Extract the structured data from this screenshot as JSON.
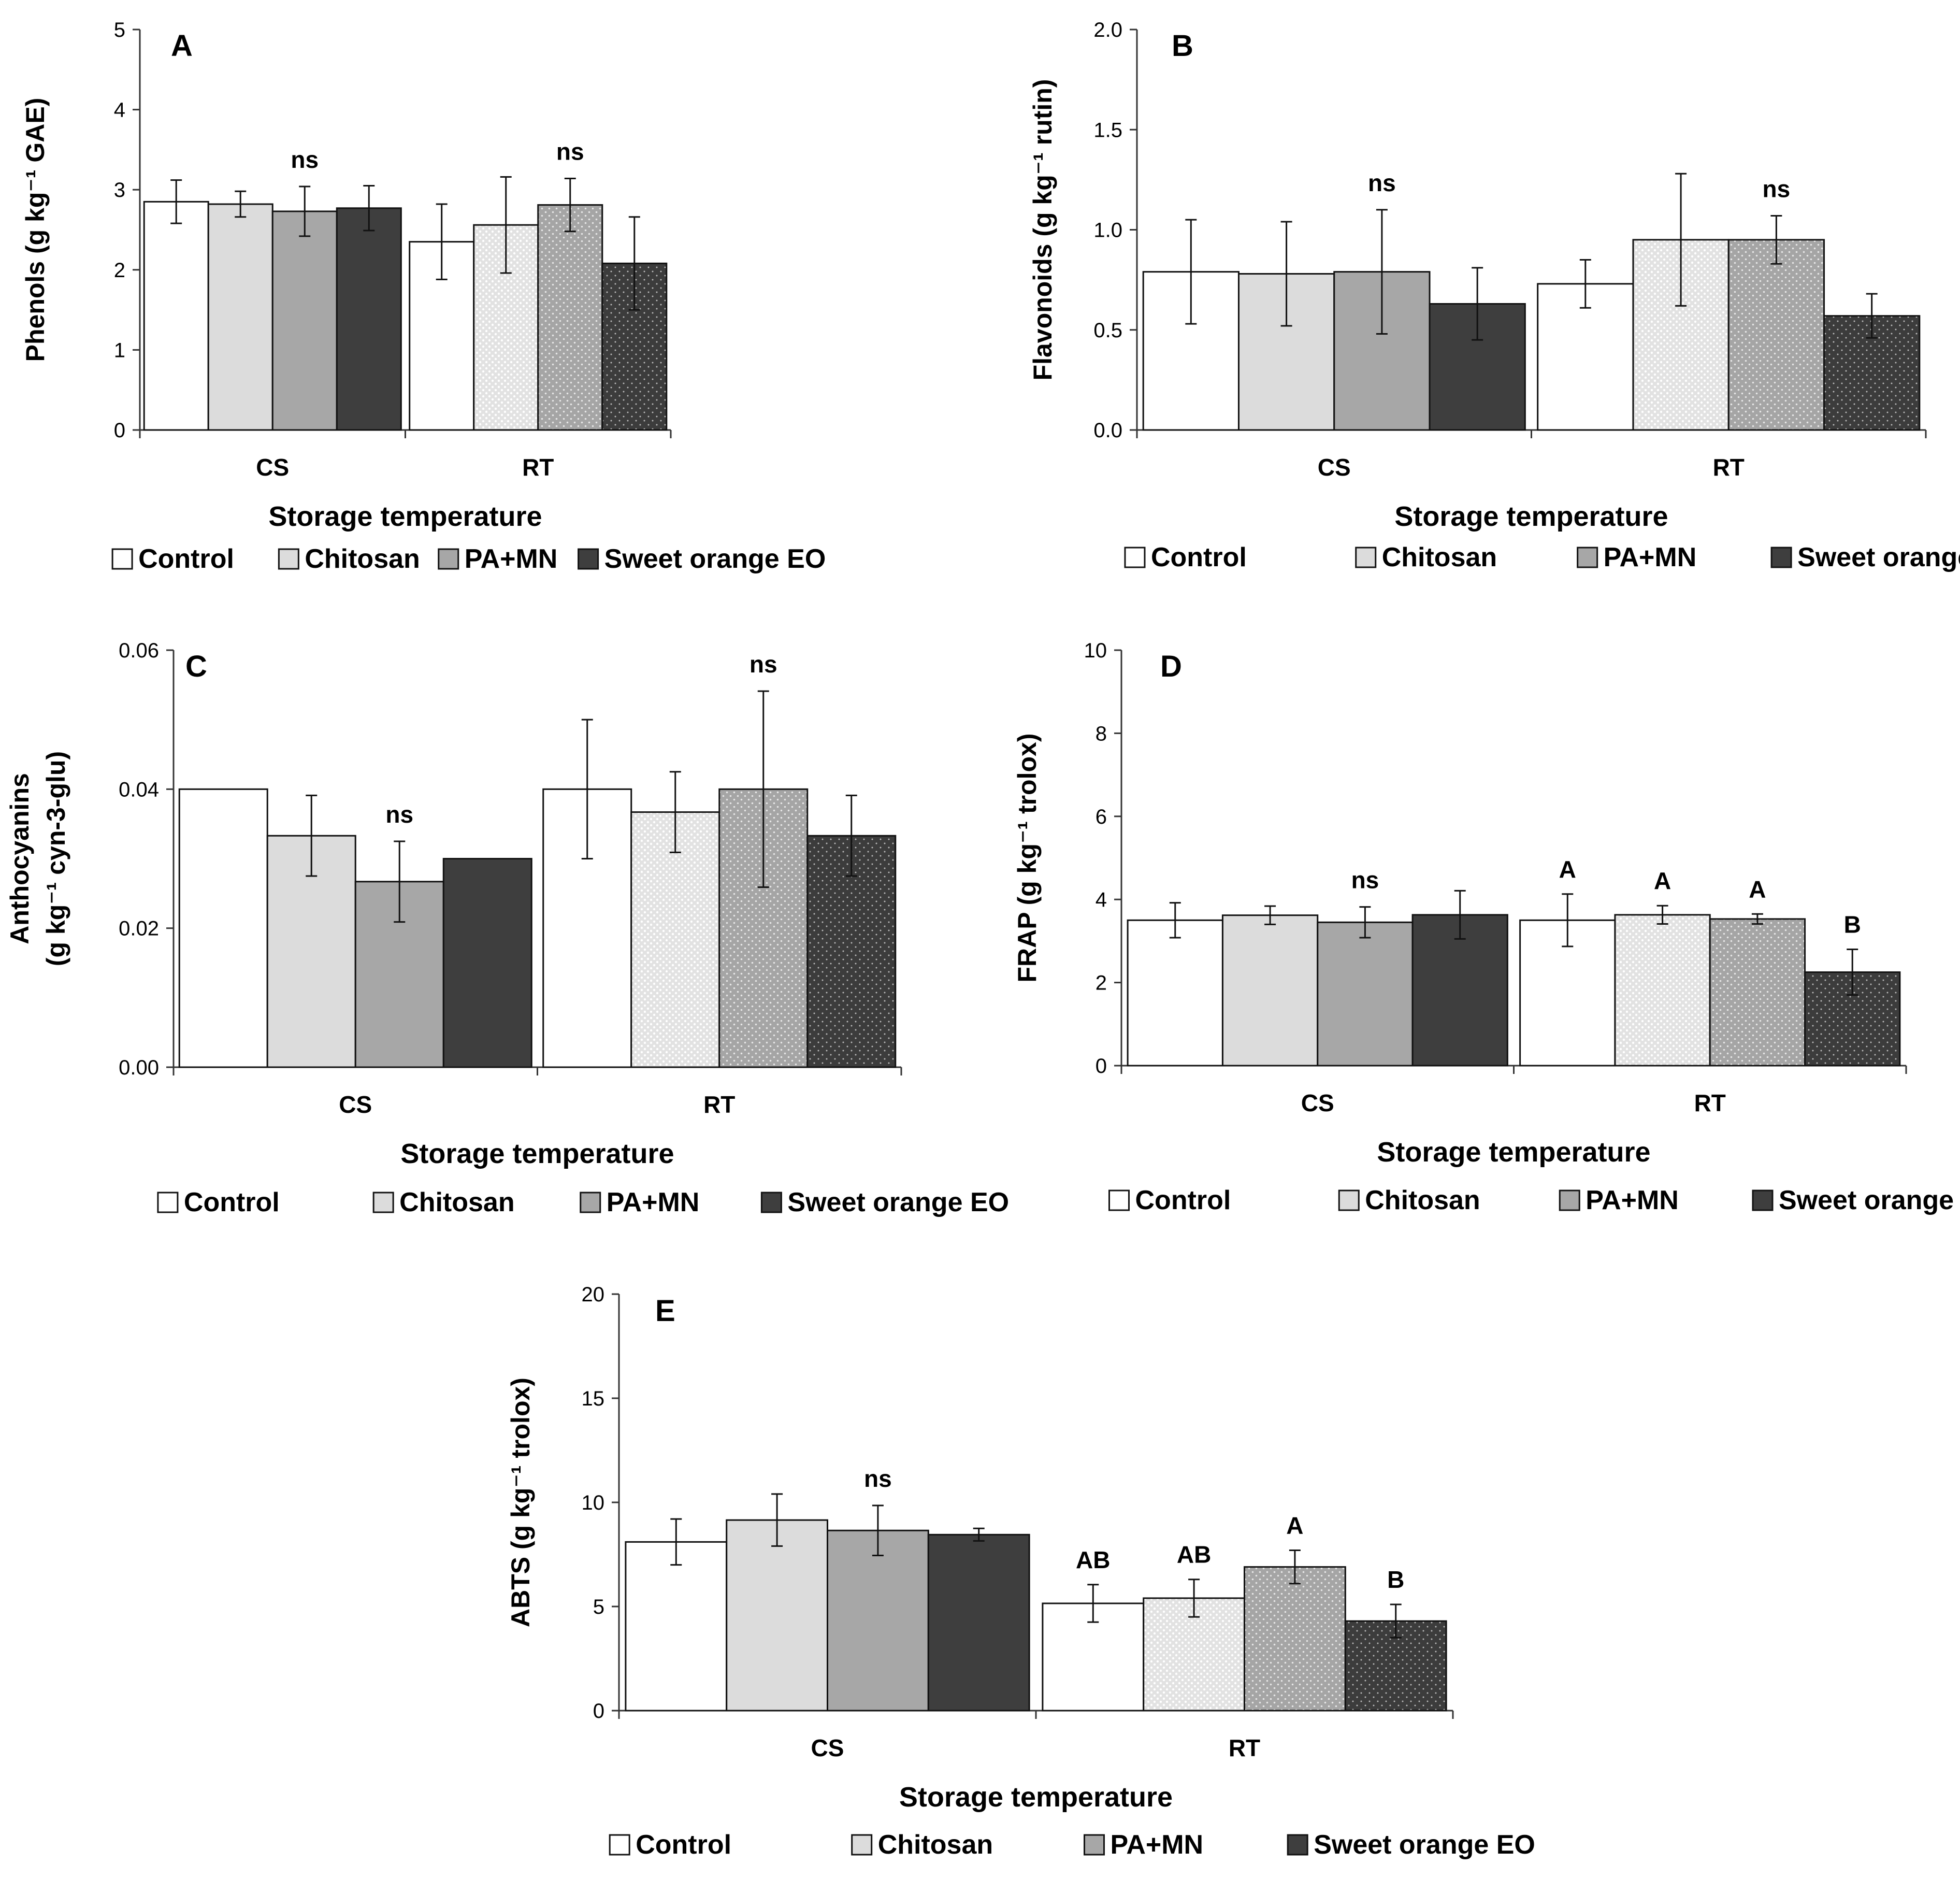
{
  "legend": [
    {
      "label": "Control",
      "fill": "#ffffff",
      "pattern": "none"
    },
    {
      "label": "Chitosan",
      "fill": "#dcdcdc",
      "pattern": "none"
    },
    {
      "label": "PA+MN",
      "fill": "#a7a7a7",
      "pattern": "none"
    },
    {
      "label": "Sweet orange EO",
      "fill": "#3e3e3e",
      "pattern": "none"
    }
  ],
  "rt_patterns": [
    "none",
    "dots-light",
    "dots-mid",
    "dots-dark"
  ],
  "chart_data": [
    {
      "type": "bar",
      "panel": "A",
      "title": "",
      "xlabel": "Storage temperature",
      "ylabel": "Phenols (g kg⁻¹ GAE)",
      "ylim": [
        0,
        5
      ],
      "yticks": [
        "0",
        "1",
        "2",
        "3",
        "4",
        "5"
      ],
      "categories": [
        "CS",
        "RT"
      ],
      "series": [
        {
          "name": "Control",
          "values": [
            2.85,
            2.35
          ],
          "errors": [
            0.27,
            0.47
          ]
        },
        {
          "name": "Chitosan",
          "values": [
            2.82,
            2.56
          ],
          "errors": [
            0.16,
            0.6
          ]
        },
        {
          "name": "PA+MN",
          "values": [
            2.73,
            2.81
          ],
          "errors": [
            0.31,
            0.33
          ]
        },
        {
          "name": "Sweet orange EO",
          "values": [
            2.77,
            2.08
          ],
          "errors": [
            0.28,
            0.58
          ]
        }
      ],
      "group_labels": [
        "ns",
        "ns"
      ],
      "bar_labels": [
        [
          "",
          "",
          "",
          ""
        ],
        [
          "",
          "",
          "",
          ""
        ]
      ]
    },
    {
      "type": "bar",
      "panel": "B",
      "title": "",
      "xlabel": "Storage temperature",
      "ylabel": "Flavonoids (g kg⁻¹ rutin)",
      "ylim": [
        0,
        2.0
      ],
      "yticks": [
        "0.0",
        "0.5",
        "1.0",
        "1.5",
        "2.0"
      ],
      "categories": [
        "CS",
        "RT"
      ],
      "series": [
        {
          "name": "Control",
          "values": [
            0.79,
            0.73
          ],
          "errors": [
            0.26,
            0.12
          ]
        },
        {
          "name": "Chitosan",
          "values": [
            0.78,
            0.95
          ],
          "errors": [
            0.26,
            0.33
          ]
        },
        {
          "name": "PA+MN",
          "values": [
            0.79,
            0.95
          ],
          "errors": [
            0.31,
            0.12
          ]
        },
        {
          "name": "Sweet orange EO",
          "values": [
            0.63,
            0.57
          ],
          "errors": [
            0.18,
            0.11
          ]
        }
      ],
      "group_labels": [
        "ns",
        "ns"
      ],
      "bar_labels": [
        [
          "",
          "",
          "",
          ""
        ],
        [
          "",
          "",
          "",
          ""
        ]
      ]
    },
    {
      "type": "bar",
      "panel": "C",
      "title": "",
      "xlabel": "Storage temperature",
      "ylabel": "Anthocyanins",
      "ylabel2": "(g kg⁻¹ cyn-3-glu)",
      "ylim": [
        0,
        0.06
      ],
      "yticks": [
        "0.00",
        "0.02",
        "0.04",
        "0.06"
      ],
      "categories": [
        "CS",
        "RT"
      ],
      "series": [
        {
          "name": "Control",
          "values": [
            0.04,
            0.04
          ],
          "errors": [
            0,
            0.01
          ]
        },
        {
          "name": "Chitosan",
          "values": [
            0.0333,
            0.0367
          ],
          "errors": [
            0.0058,
            0.0058
          ]
        },
        {
          "name": "PA+MN",
          "values": [
            0.0267,
            0.04
          ],
          "errors": [
            0.0058,
            0.0141
          ]
        },
        {
          "name": "Sweet orange EO",
          "values": [
            0.03,
            0.0333
          ],
          "errors": [
            0,
            0.0058
          ]
        }
      ],
      "group_labels": [
        "ns",
        "ns"
      ],
      "bar_labels": [
        [
          "",
          "",
          "",
          ""
        ],
        [
          "",
          "",
          "",
          ""
        ]
      ]
    },
    {
      "type": "bar",
      "panel": "D",
      "title": "",
      "xlabel": "Storage temperature",
      "ylabel": "FRAP (g kg⁻¹ trolox)",
      "ylim": [
        0,
        10
      ],
      "yticks": [
        "0",
        "2",
        "4",
        "6",
        "8",
        "10"
      ],
      "categories": [
        "CS",
        "RT"
      ],
      "series": [
        {
          "name": "Control",
          "values": [
            3.5,
            3.5
          ],
          "errors": [
            0.42,
            0.63
          ]
        },
        {
          "name": "Chitosan",
          "values": [
            3.62,
            3.63
          ],
          "errors": [
            0.22,
            0.22
          ]
        },
        {
          "name": "PA+MN",
          "values": [
            3.45,
            3.53
          ],
          "errors": [
            0.37,
            0.12
          ]
        },
        {
          "name": "Sweet orange EO",
          "values": [
            3.63,
            2.25
          ],
          "errors": [
            0.58,
            0.55
          ]
        }
      ],
      "group_labels": [
        "ns",
        ""
      ],
      "bar_labels": [
        [
          "",
          "",
          "",
          ""
        ],
        [
          "A",
          "A",
          "A",
          "B"
        ]
      ]
    },
    {
      "type": "bar",
      "panel": "E",
      "title": "",
      "xlabel": "Storage temperature",
      "ylabel": "ABTS (g kg⁻¹ trolox)",
      "ylim": [
        0,
        20
      ],
      "yticks": [
        "0",
        "5",
        "10",
        "15",
        "20"
      ],
      "categories": [
        "CS",
        "RT"
      ],
      "series": [
        {
          "name": "Control",
          "values": [
            8.1,
            5.15
          ],
          "errors": [
            1.1,
            0.9
          ]
        },
        {
          "name": "Chitosan",
          "values": [
            9.15,
            5.4
          ],
          "errors": [
            1.25,
            0.9
          ]
        },
        {
          "name": "PA+MN",
          "values": [
            8.65,
            6.9
          ],
          "errors": [
            1.2,
            0.8
          ]
        },
        {
          "name": "Sweet orange EO",
          "values": [
            8.45,
            4.3
          ],
          "errors": [
            0.3,
            0.8
          ]
        }
      ],
      "group_labels": [
        "ns",
        ""
      ],
      "bar_labels": [
        [
          "",
          "",
          "",
          ""
        ],
        [
          "AB",
          "AB",
          "A",
          "B"
        ]
      ]
    }
  ]
}
